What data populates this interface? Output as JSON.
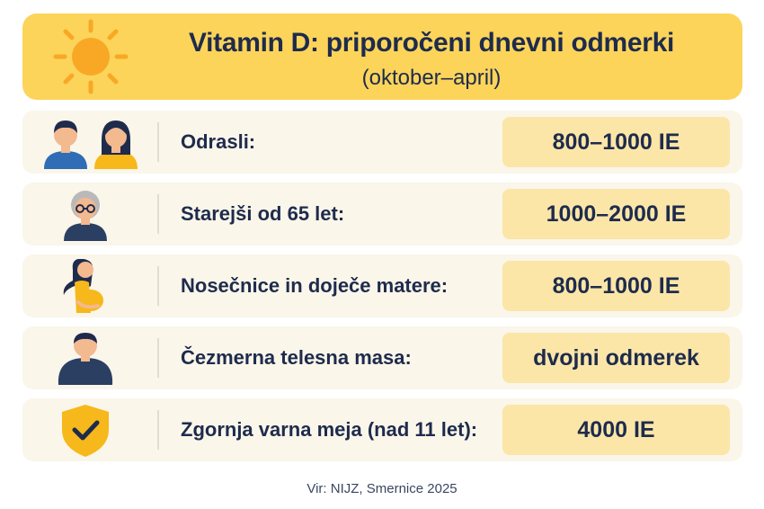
{
  "header": {
    "title": "Vitamin D: priporočeni dnevni odmerki",
    "subtitle": "(oktober–april)",
    "icon": "sun-icon"
  },
  "rows": [
    {
      "label": "Odrasli:",
      "value": "800–1000 IE",
      "icon": "adults-icon"
    },
    {
      "label": "Starejši od 65 let:",
      "value": "1000–2000 IE",
      "icon": "elderly-person-icon"
    },
    {
      "label": "Nosečnice in doječe matere:",
      "value": "800–1000 IE",
      "icon": "pregnant-woman-icon"
    },
    {
      "label": "Čezmerna telesna masa:",
      "value": "dvojni odmerek",
      "icon": "overweight-person-icon"
    },
    {
      "label": "Zgornja varna meja (nad 11 let):",
      "value": "4000 IE",
      "icon": "shield-check-icon"
    }
  ],
  "footer": {
    "source": "Vir: NIJZ, Smernice 2025"
  },
  "colors": {
    "header_bg": "#fcd45a",
    "row_bg": "#faf6ea",
    "value_bg": "#fbe6a8",
    "text": "#1e2b4c",
    "sun": "#f9a825"
  }
}
